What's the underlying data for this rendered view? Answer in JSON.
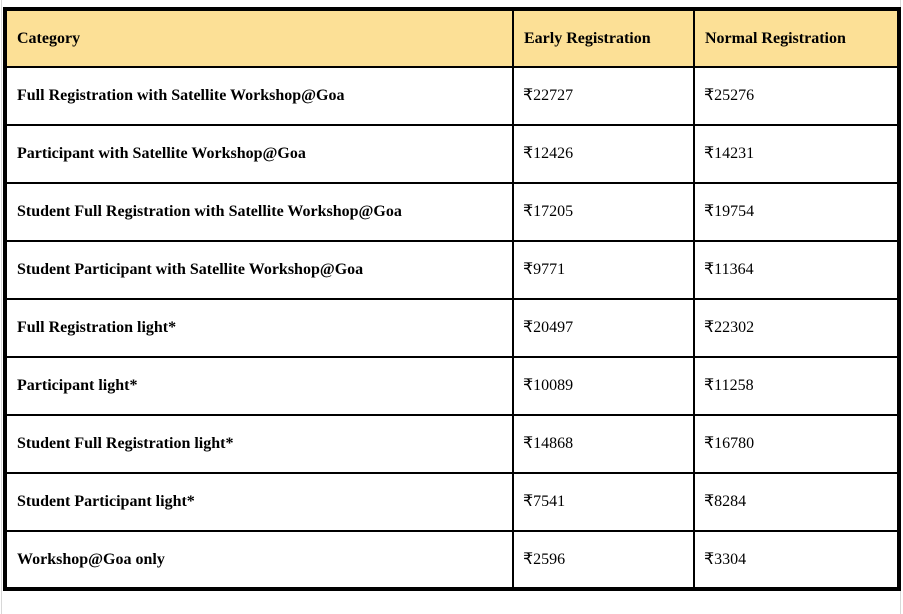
{
  "colors": {
    "header_bg": "#FCE096",
    "border_color": "#000000",
    "text_color": "#000000",
    "page_bg": "#FFFFFF",
    "gridline_artifact": "#D8D8D8"
  },
  "table": {
    "currency_symbol": "₹",
    "columns": [
      {
        "label": "Category"
      },
      {
        "label": "Early Registration"
      },
      {
        "label": "Normal Registration"
      }
    ],
    "rows": [
      {
        "category": "Full Registration with Satellite Workshop@Goa",
        "early": "₹22727",
        "normal": "₹25276"
      },
      {
        "category": "Participant with Satellite Workshop@Goa",
        "early": "₹12426",
        "normal": "₹14231"
      },
      {
        "category": "Student Full Registration with Satellite Workshop@Goa",
        "early": "₹17205",
        "normal": "₹19754"
      },
      {
        "category": "Student Participant with Satellite Workshop@Goa",
        "early": "₹9771",
        "normal": "₹11364"
      },
      {
        "category": "Full Registration light*",
        "early": "₹20497",
        "normal": "₹22302"
      },
      {
        "category": "Participant light*",
        "early": "₹10089",
        "normal": "₹11258"
      },
      {
        "category": "Student Full Registration light*",
        "early": "₹14868",
        "normal": "₹16780"
      },
      {
        "category": "Student Participant light*",
        "early": "₹7541",
        "normal": "₹8284"
      },
      {
        "category": "Workshop@Goa only",
        "early": "₹2596",
        "normal": "₹3304"
      }
    ]
  }
}
